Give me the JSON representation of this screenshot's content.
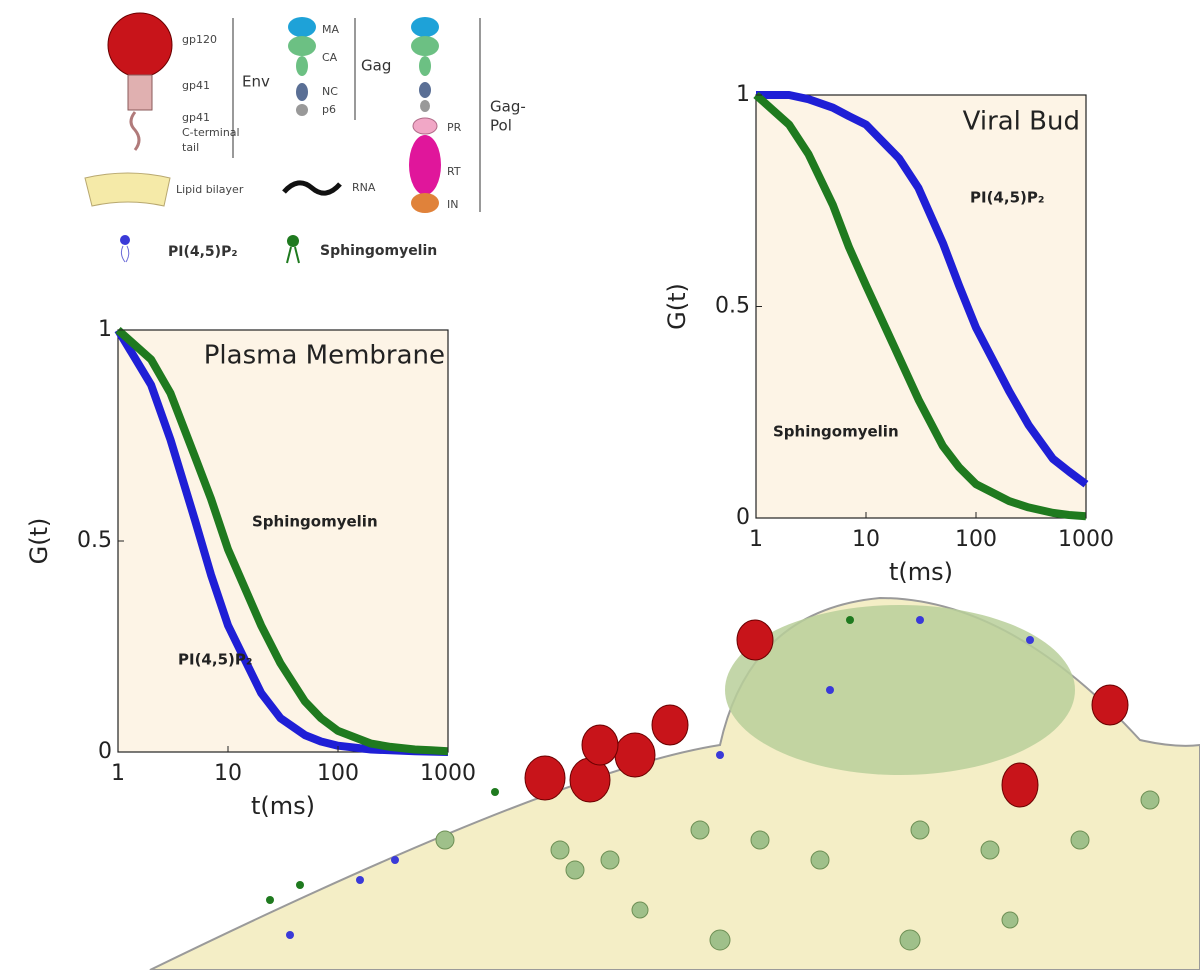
{
  "legend": {
    "gp120": "gp120",
    "gp41": "gp41",
    "tail": [
      "gp41",
      "C-terminal",
      "tail"
    ],
    "env": "Env",
    "ma": "MA",
    "ca": "CA",
    "nc": "NC",
    "p6": "p6",
    "gag": "Gag",
    "pr": "PR",
    "rt": "RT",
    "in": "IN",
    "gagpol": [
      "Gag-",
      "Pol"
    ],
    "lipid": "Lipid bilayer",
    "rna": "RNA",
    "pip2": "PI(4,5)P₂",
    "sm": "Sphingomyelin"
  },
  "chart_data": [
    {
      "type": "line",
      "title": "Plasma Membrane",
      "xlabel": "t(ms)",
      "ylabel": "G(t)",
      "xscale": "log",
      "xlim": [
        1,
        1000
      ],
      "ylim": [
        0,
        1
      ],
      "xticks": [
        1,
        10,
        100,
        1000
      ],
      "yticks": [
        0,
        0.5,
        1
      ],
      "x": [
        1,
        2,
        3,
        5,
        7,
        10,
        20,
        30,
        50,
        70,
        100,
        200,
        300,
        500,
        700,
        1000
      ],
      "series": [
        {
          "name": "PI(4,5)P₂",
          "color": "#1f1fd6",
          "values": [
            1,
            0.87,
            0.74,
            0.55,
            0.42,
            0.3,
            0.14,
            0.08,
            0.04,
            0.025,
            0.015,
            0.006,
            0.004,
            0.002,
            0.001,
            0
          ]
        },
        {
          "name": "Sphingomyelin",
          "color": "#1f7a1f",
          "values": [
            1,
            0.93,
            0.85,
            0.7,
            0.6,
            0.48,
            0.3,
            0.21,
            0.12,
            0.08,
            0.05,
            0.02,
            0.012,
            0.006,
            0.004,
            0.002
          ]
        }
      ]
    },
    {
      "type": "line",
      "title": "Viral Bud",
      "xlabel": "t(ms)",
      "ylabel": "G(t)",
      "xscale": "log",
      "xlim": [
        1,
        1000
      ],
      "ylim": [
        0,
        1
      ],
      "xticks": [
        1,
        10,
        100,
        1000
      ],
      "yticks": [
        0,
        0.5,
        1
      ],
      "x": [
        1,
        2,
        3,
        5,
        7,
        10,
        20,
        30,
        50,
        70,
        100,
        200,
        300,
        500,
        700,
        1000
      ],
      "series": [
        {
          "name": "PI(4,5)P₂",
          "color": "#1f1fd6",
          "values": [
            1,
            1,
            0.99,
            0.97,
            0.95,
            0.93,
            0.85,
            0.78,
            0.65,
            0.55,
            0.45,
            0.3,
            0.22,
            0.14,
            0.11,
            0.08
          ]
        },
        {
          "name": "Sphingomyelin",
          "color": "#1f7a1f",
          "values": [
            1,
            0.93,
            0.86,
            0.74,
            0.64,
            0.55,
            0.38,
            0.28,
            0.17,
            0.12,
            0.08,
            0.04,
            0.025,
            0.012,
            0.007,
            0.004
          ]
        }
      ]
    }
  ]
}
